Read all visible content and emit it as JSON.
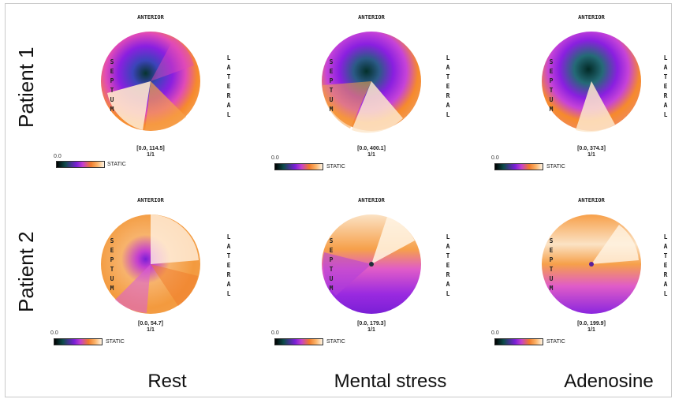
{
  "rows": [
    {
      "label": "Patient 1"
    },
    {
      "label": "Patient 2"
    }
  ],
  "columns": [
    {
      "label": "Rest"
    },
    {
      "label": "Mental stress"
    },
    {
      "label": "Adenosine"
    }
  ],
  "orientation": {
    "top": "ANTERIOR",
    "left": "SEPTUM",
    "right": "LATERAL"
  },
  "colorbar": {
    "caption": "STATIC",
    "colors": [
      "#000000",
      "#0d4b4a",
      "#7a1fd6",
      "#c43fd0",
      "#f07a2a",
      "#fbb46a",
      "#fff4e4"
    ]
  },
  "panels": [
    {
      "row": 0,
      "col": 0,
      "scale_min": "0.0",
      "range": "[0.0, 114.5]",
      "frame": "1/1"
    },
    {
      "row": 0,
      "col": 1,
      "scale_min": "0.0",
      "range": "[0.0, 400.1]",
      "frame": "1/1"
    },
    {
      "row": 0,
      "col": 2,
      "scale_min": "0.0",
      "range": "[0.0, 374.3]",
      "frame": "1/1"
    },
    {
      "row": 1,
      "col": 0,
      "scale_min": "0.0",
      "range": "[0.0, 54.7]",
      "frame": "1/1"
    },
    {
      "row": 1,
      "col": 1,
      "scale_min": "0.0",
      "range": "[0.0, 179.3]",
      "frame": "1/1"
    },
    {
      "row": 1,
      "col": 2,
      "scale_min": "0.0",
      "range": "[0.0, 199.9]",
      "frame": "1/1"
    }
  ]
}
